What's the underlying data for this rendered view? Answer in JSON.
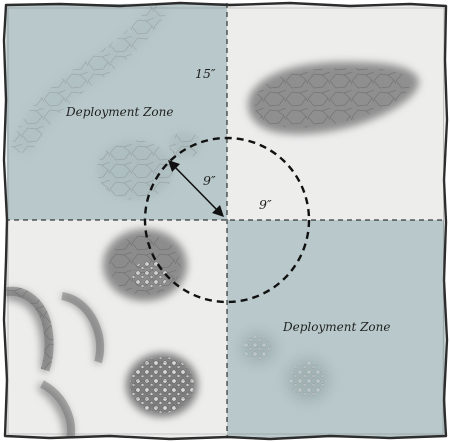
{
  "map": {
    "colors": {
      "board": "#ededec",
      "deployment_zone": "#b9c9cb",
      "frame": "#2d2d2d",
      "terrain": "#8d8d8d",
      "line": "#111111"
    },
    "deployment_zones": [
      {
        "label": "Deployment Zone"
      },
      {
        "label": "Deployment Zone"
      }
    ],
    "labels": {
      "zone_distance": "15″",
      "circle_radius_arrow": "9″",
      "circle_radius_line": "9″"
    }
  }
}
